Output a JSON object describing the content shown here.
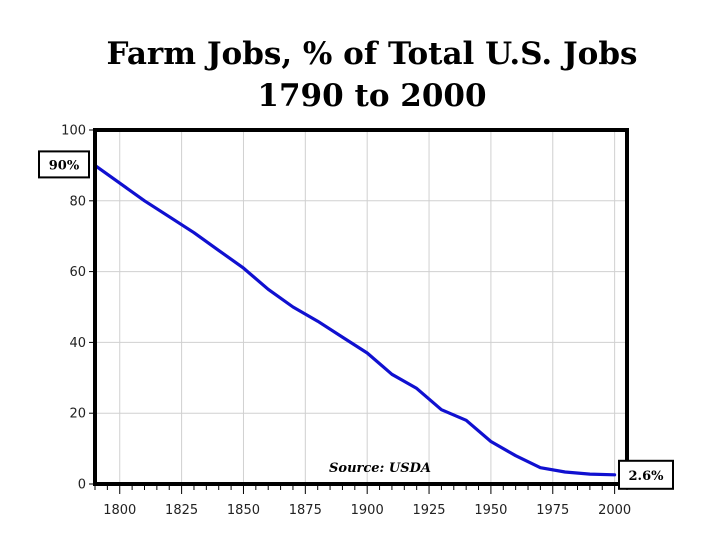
{
  "chart_data": {
    "type": "line",
    "title": "Farm Jobs, % of Total U.S. Jobs",
    "subtitle": "1790 to 2000",
    "xlabel": "",
    "ylabel": "",
    "xlim": [
      1790,
      2005
    ],
    "ylim": [
      0,
      100
    ],
    "x_ticks": [
      1800,
      1825,
      1850,
      1875,
      1900,
      1925,
      1950,
      1975,
      2000
    ],
    "y_ticks": [
      0,
      20,
      40,
      60,
      80,
      100
    ],
    "grid": true,
    "legend": "none",
    "line_color": "#1010d0",
    "annotations": {
      "source": "Source: USDA",
      "start_label": "90%",
      "end_label": "2.6%"
    },
    "series": [
      {
        "x": [
          1790,
          1800,
          1810,
          1820,
          1830,
          1840,
          1850,
          1860,
          1870,
          1880,
          1890,
          1900,
          1910,
          1920,
          1930,
          1940,
          1950,
          1960,
          1970,
          1980,
          1990,
          2000
        ],
        "values": [
          90,
          85,
          80,
          75.5,
          71,
          66,
          61,
          55,
          50,
          46,
          41.5,
          37,
          31,
          27,
          21,
          18,
          12,
          8,
          4.6,
          3.4,
          2.8,
          2.6
        ]
      }
    ]
  }
}
